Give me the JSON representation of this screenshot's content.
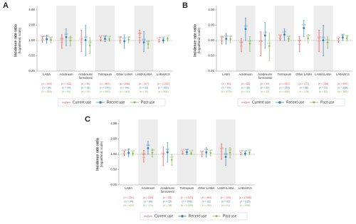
{
  "chart_data": [
    {
      "type": "errorbar",
      "panel": "A",
      "ylabel": "Incidence rate ratio",
      "ylabel_sub": "(logarithmic scale)",
      "log_scale": true,
      "ylim": [
        0.25,
        4
      ],
      "yticks": [
        {
          "value": 0.25,
          "label": "0.25"
        },
        {
          "value": 0.5,
          "label": "0.50"
        },
        {
          "value": 1,
          "label": "1.00"
        },
        {
          "value": 2,
          "label": "2.00"
        },
        {
          "value": 4,
          "label": "4.00"
        }
      ],
      "reference": {
        "value": 1,
        "label": "1.00"
      },
      "categories": [
        "LABA",
        "Aclidinium",
        "Aclidinium/ formoterol",
        "Tiotropium",
        "Other LAMA",
        "LAMA/LABA",
        "LABA/ICS"
      ],
      "series": [
        {
          "name": "Current use",
          "color": "#e8473f",
          "marker": "triangle-up",
          "values": [
            1.05,
            0.95,
            0.95,
            1.07,
            1.02,
            1.2,
            0.99
          ],
          "lower": [
            0.92,
            0.7,
            0.6,
            0.98,
            0.88,
            0.9,
            0.93
          ],
          "upper": [
            1.2,
            1.3,
            1.6,
            1.17,
            1.18,
            1.6,
            1.06
          ],
          "value_labels": [
            "1.05",
            "0.95",
            "0.95",
            "1.07",
            "1.02",
            "1.20",
            "0.99"
          ],
          "counts": [
            "(n = 144)",
            "(n = 143)",
            "(n = 34)",
            "(n = 867)",
            "(n = 298)",
            "(n = 107)",
            "(n = 1,252)"
          ]
        },
        {
          "name": "Recent use",
          "color": "#2f7fc1",
          "marker": "circle",
          "values": [
            1.06,
            1.17,
            1.02,
            1.08,
            0.97,
            0.92,
            1.01
          ],
          "lower": [
            0.88,
            0.8,
            0.5,
            0.95,
            0.7,
            0.6,
            0.9
          ],
          "upper": [
            1.28,
            1.7,
            2.0,
            1.23,
            1.3,
            1.5,
            1.13
          ],
          "value_labels": [
            "1.06",
            "1.17",
            "1.02",
            "1.08",
            "0.97",
            "0.92",
            "1.01"
          ],
          "counts": [
            "(n = 54)",
            "(n = 94)",
            "(n = 16)",
            "(n = 247)",
            "(n = 64)",
            "(n = 33)",
            "(n = 362)"
          ]
        },
        {
          "name": "Past use",
          "color": "#7ab648",
          "marker": "triangle-down",
          "values": [
            1.02,
            0.99,
            0.8,
            1.05,
            1.03,
            0.84,
            1.07
          ],
          "lower": [
            0.9,
            0.8,
            0.55,
            0.97,
            0.9,
            0.7,
            0.98
          ],
          "upper": [
            1.15,
            1.22,
            1.15,
            1.14,
            1.18,
            1.0,
            1.17
          ],
          "value_labels": [
            "1.02",
            "0.99",
            "0.80",
            "1.05",
            "1.03",
            "0.84",
            "1.07"
          ],
          "counts": [
            "(n = 164)",
            "(n = 90)",
            "(n = 19)",
            "(n = 690)",
            "(n = 163)",
            "(n = 30)",
            "(n = 508)"
          ]
        }
      ]
    },
    {
      "type": "errorbar",
      "panel": "B",
      "ylabel": "Incidence rate ratio",
      "ylabel_sub": "(logarithmic scale)",
      "log_scale": true,
      "ylim": [
        0.25,
        4
      ],
      "yticks": [
        {
          "value": 0.25,
          "label": "0.25"
        },
        {
          "value": 0.5,
          "label": "0.50"
        },
        {
          "value": 1,
          "label": "1.00"
        },
        {
          "value": 2,
          "label": "2.00"
        },
        {
          "value": 4,
          "label": "4.00"
        }
      ],
      "reference": {
        "value": 1,
        "label": "1.00"
      },
      "categories": [
        "LABA",
        "Aclidinium",
        "Aclidinium/ formoterol",
        "Tiotropium",
        "Other LAMA",
        "LAMA/LABA",
        "LABA/ICS"
      ],
      "series": [
        {
          "name": "Current use",
          "color": "#e8473f",
          "marker": "triangle-up",
          "values": [
            1.02,
            0.8,
            0.85,
            1.12,
            0.87,
            1.0,
            1.0
          ],
          "lower": [
            0.85,
            0.6,
            0.5,
            1.0,
            0.6,
            0.6,
            0.92
          ],
          "upper": [
            1.22,
            1.1,
            1.5,
            1.25,
            1.2,
            1.6,
            1.09
          ],
          "value_labels": [
            "1.02",
            "0.80",
            "0.85",
            "1.12",
            "0.87",
            "1.00",
            "1.00"
          ],
          "counts": [
            "(n = 93)",
            "(n = 63)",
            "(n = 34)",
            "(n = 657)",
            "(n = 177)",
            "(n = 158)",
            "(n = 909)"
          ]
        },
        {
          "name": "Recent use",
          "color": "#2f7fc1",
          "marker": "circle",
          "values": [
            1.08,
            1.69,
            1.26,
            1.31,
            1.76,
            1.01,
            1.15
          ],
          "lower": [
            0.85,
            1.0,
            0.7,
            1.0,
            1.2,
            0.5,
            1.0
          ],
          "upper": [
            1.38,
            2.8,
            2.3,
            1.7,
            2.5,
            2.0,
            1.32
          ],
          "value_labels": [
            "1.08",
            "1.69",
            "1.26",
            "1.31",
            "1.76",
            "1.01",
            "1.15"
          ],
          "counts": [
            "(n = 79)",
            "(n = 36)",
            "(n = 20)",
            "(n = 157)",
            "(n = 66)",
            "(n = 21)",
            "(n = 268)"
          ]
        },
        {
          "name": "Past use",
          "color": "#7ab648",
          "marker": "triangle-down",
          "values": [
            1.05,
            0.86,
            0.77,
            1.06,
            1.09,
            0.91,
            1.1
          ],
          "lower": [
            0.9,
            0.6,
            0.4,
            0.95,
            0.9,
            0.7,
            0.97
          ],
          "upper": [
            1.22,
            1.2,
            1.4,
            1.18,
            1.32,
            1.18,
            1.24
          ],
          "value_labels": [
            "1.05",
            "0.86",
            "0.77",
            "1.06",
            "1.09",
            "0.91",
            "1.10"
          ],
          "counts": [
            "(n = 175)",
            "(n = 61)",
            "(n = 13)",
            "(n = 468)",
            "(n = 136)",
            "(n = 52)",
            "(n = 385)"
          ]
        }
      ]
    },
    {
      "type": "errorbar",
      "panel": "C",
      "ylabel": "Incidence rate ratio",
      "ylabel_sub": "(logarithmic scale)",
      "log_scale": true,
      "ylim": [
        0.25,
        4
      ],
      "yticks": [
        {
          "value": 0.25,
          "label": "0.25"
        },
        {
          "value": 0.5,
          "label": "0.50"
        },
        {
          "value": 1,
          "label": "1.00"
        },
        {
          "value": 2,
          "label": "2.00"
        },
        {
          "value": 4,
          "label": "4.00"
        }
      ],
      "reference": {
        "value": 1,
        "label": "1.00"
      },
      "categories": [
        "LABA",
        "Aclidinium",
        "Aclidinium/ formoterol",
        "Tiotropium",
        "Other LAMA",
        "LAMA/LABA",
        "LABA/ICS"
      ],
      "series": [
        {
          "name": "Current use",
          "color": "#e8473f",
          "marker": "triangle-up",
          "values": [
            1.05,
            0.89,
            0.91,
            1.07,
            1.0,
            1.15,
            1.03
          ],
          "lower": [
            0.95,
            0.7,
            0.6,
            1.0,
            0.9,
            0.8,
            0.97
          ],
          "upper": [
            1.16,
            1.2,
            1.4,
            1.14,
            1.11,
            1.6,
            1.09
          ],
          "value_labels": [
            "1.05",
            "0.89",
            "0.91",
            "1.07",
            "1.00",
            "1.15",
            "1.03"
          ],
          "counts": [
            "(n = 234)",
            "(n = 225)",
            "(n = 53)",
            "(n = 1,523)",
            "(n = 484)",
            "(n = 209)",
            "(n = 2,055)"
          ]
        },
        {
          "name": "Recent use",
          "color": "#2f7fc1",
          "marker": "circle",
          "values": [
            1.07,
            1.32,
            1.1,
            1.1,
            1.09,
            0.89,
            1.03
          ],
          "lower": [
            0.9,
            1.0,
            0.7,
            0.98,
            0.88,
            0.6,
            0.94
          ],
          "upper": [
            1.28,
            1.8,
            1.7,
            1.24,
            1.35,
            1.3,
            1.13
          ],
          "value_labels": [
            "1.07",
            "1.32",
            "1.10",
            "1.10",
            "1.09",
            "0.89",
            "1.03"
          ],
          "counts": [
            "(n = 94)",
            "(n = 68)",
            "(n = 29)",
            "(n = 396)",
            "(n = 92)",
            "(n = 62)",
            "(n = 615)"
          ]
        },
        {
          "name": "Past use",
          "color": "#7ab648",
          "marker": "triangle-down",
          "values": [
            1.03,
            1.06,
            0.77,
            1.04,
            1.05,
            1.07,
            1.06
          ],
          "lower": [
            0.94,
            0.88,
            0.6,
            0.98,
            0.93,
            0.85,
            0.98
          ],
          "upper": [
            1.13,
            1.28,
            1.0,
            1.11,
            1.19,
            1.35,
            1.15
          ],
          "value_labels": [
            "1.03",
            "1.06",
            "0.77",
            "1.04",
            "1.05",
            "1.07",
            "1.06"
          ],
          "counts": [
            "(n = 424)",
            "(n = 170)",
            "(n = 38)",
            "(n = 1,325)",
            "(n = 292)",
            "(n = 91)",
            "(n = 698)"
          ]
        }
      ]
    }
  ]
}
